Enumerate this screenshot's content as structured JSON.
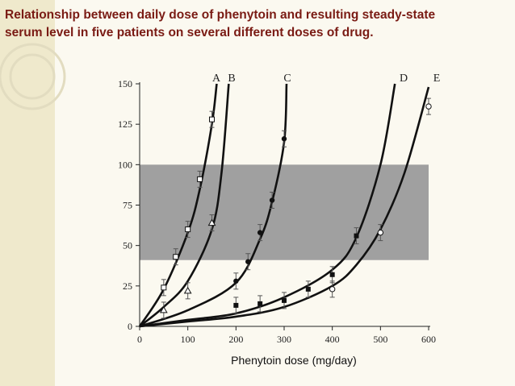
{
  "slide": {
    "title_line1": "Relationship between daily dose of  phenytoin and resulting steady-state",
    "title_line2": "serum level in five patients on several different doses of drug.",
    "colors": {
      "title": "#7a1b14",
      "band": "#a0a0a0",
      "background": "#fbf9f0",
      "accent": "#efe9cc"
    }
  },
  "chart_data": {
    "type": "scatter",
    "title": "",
    "xlabel": "Phenytoin dose (mg/day)",
    "ylabel": "",
    "xlim": [
      0,
      600
    ],
    "ylim": [
      0,
      150
    ],
    "xticks": [
      0,
      100,
      200,
      300,
      400,
      500,
      600
    ],
    "yticks": [
      0,
      25,
      50,
      75,
      100,
      125,
      150
    ],
    "therapeutic_range": [
      41,
      100
    ],
    "grid": false,
    "series": [
      {
        "name": "A",
        "marker": "open-square",
        "points": [
          [
            50,
            24
          ],
          [
            75,
            43
          ],
          [
            100,
            60
          ],
          [
            125,
            91
          ],
          [
            150,
            128
          ]
        ],
        "curve": [
          [
            0,
            0
          ],
          [
            50,
            23
          ],
          [
            100,
            58
          ],
          [
            125,
            85
          ],
          [
            150,
            125
          ],
          [
            160,
            150
          ]
        ]
      },
      {
        "name": "B",
        "marker": "open-triangle",
        "points": [
          [
            50,
            10
          ],
          [
            100,
            22
          ],
          [
            150,
            64
          ]
        ],
        "curve": [
          [
            0,
            0
          ],
          [
            50,
            12
          ],
          [
            100,
            28
          ],
          [
            150,
            60
          ],
          [
            170,
            95
          ],
          [
            185,
            150
          ]
        ]
      },
      {
        "name": "C",
        "marker": "filled-circle",
        "points": [
          [
            200,
            28
          ],
          [
            225,
            40
          ],
          [
            250,
            58
          ],
          [
            275,
            78
          ],
          [
            300,
            116
          ]
        ],
        "curve": [
          [
            0,
            0
          ],
          [
            100,
            10
          ],
          [
            200,
            27
          ],
          [
            250,
            54
          ],
          [
            275,
            77
          ],
          [
            300,
            114
          ],
          [
            305,
            150
          ]
        ]
      },
      {
        "name": "D",
        "marker": "filled-square",
        "points": [
          [
            200,
            13
          ],
          [
            250,
            14
          ],
          [
            300,
            16
          ],
          [
            350,
            23
          ],
          [
            400,
            32
          ],
          [
            450,
            56
          ]
        ],
        "curve": [
          [
            0,
            0
          ],
          [
            100,
            4
          ],
          [
            200,
            8
          ],
          [
            300,
            18
          ],
          [
            400,
            35
          ],
          [
            450,
            55
          ],
          [
            500,
            100
          ],
          [
            530,
            150
          ]
        ]
      },
      {
        "name": "E",
        "marker": "open-circle",
        "points": [
          [
            400,
            23
          ],
          [
            500,
            58
          ],
          [
            600,
            136
          ]
        ],
        "curve": [
          [
            0,
            0
          ],
          [
            100,
            3
          ],
          [
            200,
            6
          ],
          [
            300,
            12
          ],
          [
            400,
            25
          ],
          [
            450,
            38
          ],
          [
            500,
            60
          ],
          [
            550,
            95
          ],
          [
            600,
            148
          ]
        ]
      }
    ]
  }
}
